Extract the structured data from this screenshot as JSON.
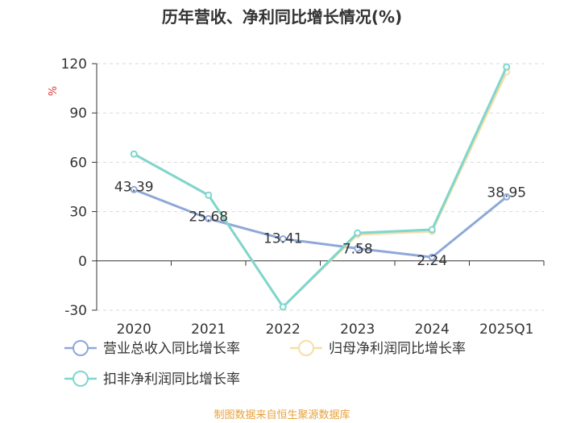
{
  "chart_data": {
    "type": "line",
    "title": "历年营收、净利同比增长情况(%)",
    "ylabel": "%",
    "xlabel": "",
    "categories": [
      "2020",
      "2021",
      "2022",
      "2023",
      "2024",
      "2025Q1"
    ],
    "ylim": [
      -30,
      120
    ],
    "yticks": [
      -30,
      0,
      30,
      60,
      90,
      120
    ],
    "grid": true,
    "legend_position": "bottom",
    "series": [
      {
        "name": "营业总收入同比增长率",
        "color": "#8fa8d8",
        "values": [
          43.39,
          25.68,
          13.41,
          7.58,
          2.24,
          38.95
        ],
        "labels": [
          "43.39",
          "25.68",
          "13.41",
          "7.58",
          "2.24",
          "38.95"
        ]
      },
      {
        "name": "归母净利润同比增长率",
        "color": "#f5dfa8",
        "values": [
          65,
          40,
          -28,
          16,
          18,
          115
        ]
      },
      {
        "name": "扣非净利润同比增长率",
        "color": "#7fd6cf",
        "values": [
          65,
          40,
          -28,
          17,
          19,
          118
        ]
      }
    ]
  },
  "source": "制图数据来自恒生聚源数据库"
}
